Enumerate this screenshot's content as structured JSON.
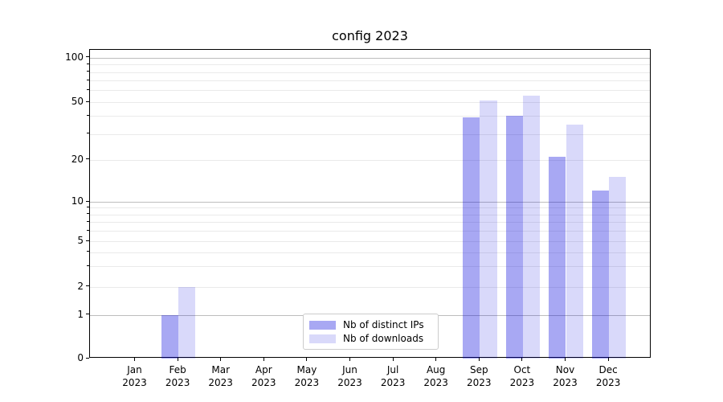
{
  "title": "config 2023",
  "chart_data": {
    "type": "bar",
    "title": "config 2023",
    "xlabel": "",
    "ylabel": "",
    "scale": "symlog-like (linear 0-1, compressed log above)",
    "grid": true,
    "legend_position": "lower center",
    "categories": [
      "Jan 2023",
      "Feb 2023",
      "Mar 2023",
      "Apr 2023",
      "May 2023",
      "Jun 2023",
      "Jul 2023",
      "Aug 2023",
      "Sep 2023",
      "Oct 2023",
      "Nov 2023",
      "Dec 2023"
    ],
    "series": [
      {
        "name": "Nb of distinct IPs",
        "color": "rgba(0,0,220,0.34)",
        "values": [
          0,
          1,
          0,
          0,
          0,
          0,
          0,
          0,
          39,
          40,
          21,
          12
        ]
      },
      {
        "name": "Nb of downloads",
        "color": "rgba(0,0,220,0.15)",
        "values": [
          0,
          2,
          0,
          0,
          0,
          0,
          0,
          0,
          51,
          55,
          35,
          15
        ]
      }
    ],
    "yticks_labeled": [
      0,
      1,
      2,
      5,
      10,
      20,
      50,
      100
    ],
    "y_major_gridlines": [
      1,
      10,
      100
    ],
    "y_minor_gridlines": [
      2,
      3,
      4,
      5,
      6,
      7,
      8,
      9,
      20,
      30,
      40,
      50,
      60,
      70,
      80,
      90
    ],
    "ylim": [
      0,
      113
    ]
  }
}
